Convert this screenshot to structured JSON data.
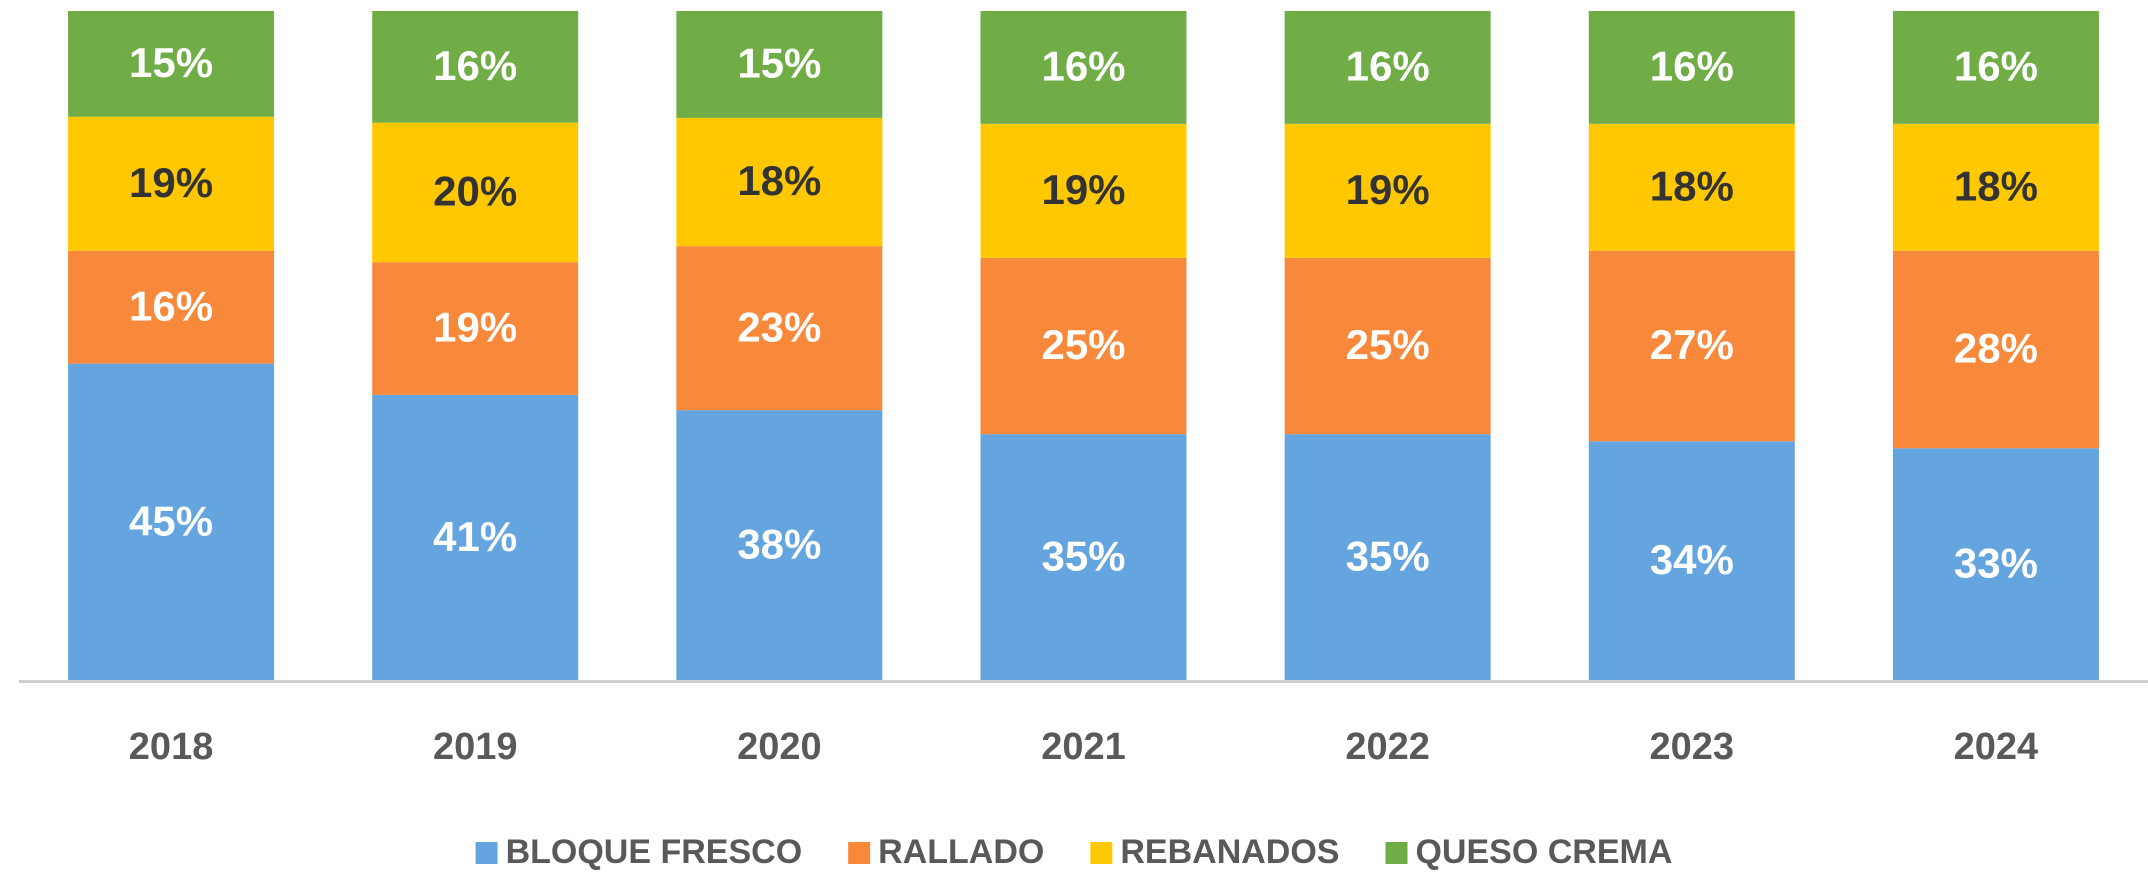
{
  "chart_data": {
    "type": "bar",
    "stacking": "percent",
    "categories": [
      "2018",
      "2019",
      "2020",
      "2021",
      "2022",
      "2023",
      "2024"
    ],
    "series": [
      {
        "name": "BLOQUE FRESCO",
        "color": "#64a5e0",
        "values": [
          45,
          41,
          38,
          35,
          35,
          34,
          33
        ],
        "value_labels": [
          "45%",
          "41%",
          "38%",
          "35%",
          "35%",
          "34%",
          "33%"
        ]
      },
      {
        "name": "RALLADO",
        "color": "#f8883a",
        "values": [
          16,
          19,
          23,
          25,
          25,
          27,
          28
        ],
        "value_labels": [
          "16%",
          "19%",
          "23%",
          "25%",
          "25%",
          "27%",
          "28%"
        ]
      },
      {
        "name": "REBANADOS",
        "color": "#ffc800",
        "values": [
          19,
          20,
          18,
          19,
          19,
          18,
          18
        ],
        "value_labels": [
          "19%",
          "20%",
          "18%",
          "19%",
          "19%",
          "18%",
          "18%"
        ]
      },
      {
        "name": "QUESO CREMA",
        "color": "#70ad47",
        "values": [
          15,
          16,
          15,
          16,
          16,
          16,
          16
        ],
        "value_labels": [
          "15%",
          "16%",
          "15%",
          "16%",
          "16%",
          "16%",
          "16%"
        ]
      }
    ],
    "legend": "bottom"
  }
}
